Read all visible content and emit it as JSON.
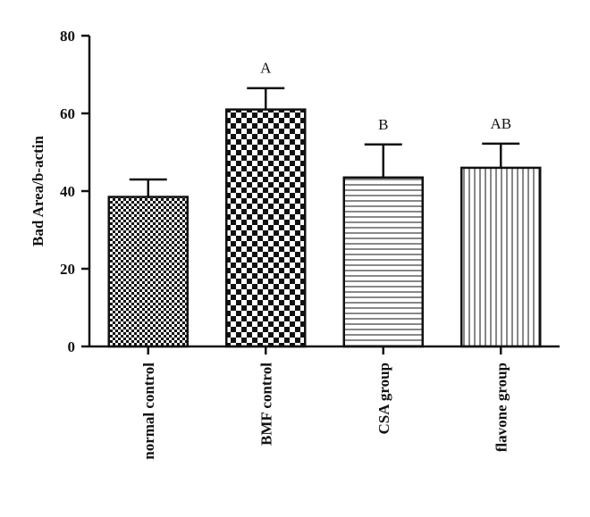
{
  "chart_data": {
    "type": "bar",
    "ylabel": "Bad Area/b-actin",
    "xlabel": "",
    "ylim": [
      0,
      80
    ],
    "yticks": [
      0,
      20,
      40,
      60,
      80
    ],
    "categories": [
      "normal control",
      "BMF control",
      "CSA group",
      "flavone group"
    ],
    "values": [
      38.5,
      61,
      43.5,
      46
    ],
    "errors": [
      4.5,
      5.5,
      8.5,
      6.2
    ],
    "annotations": [
      "",
      "A",
      "B",
      "AB"
    ],
    "patterns": [
      "fine-checker",
      "coarse-checker",
      "horizontal-lines",
      "vertical-lines"
    ],
    "grid": false,
    "legend": "none"
  }
}
